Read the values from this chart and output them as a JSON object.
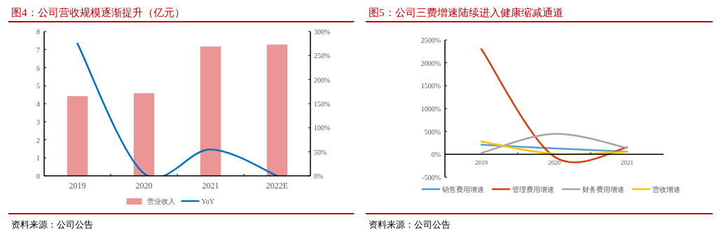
{
  "chart_data": [
    {
      "type": "bar",
      "title": "图4：公司营收规模逐渐提升（亿元）",
      "categories": [
        "2019",
        "2020",
        "2021",
        "2022E"
      ],
      "series": [
        {
          "name": "营业收入",
          "color": "#eb9595",
          "values": [
            4.42,
            4.58,
            7.17,
            7.28
          ]
        },
        {
          "name": "YoY",
          "type": "line",
          "color": "#0070c0",
          "axis": "y2",
          "values": [
            275,
            5,
            55,
            0
          ]
        }
      ],
      "ylim": [
        0,
        8
      ],
      "yticks": [
        0,
        1,
        2,
        3,
        4,
        5,
        6,
        7,
        8
      ],
      "y2lim": [
        0,
        300
      ],
      "y2ticks": [
        {
          "value": 0,
          "label": "0%"
        },
        {
          "value": 50,
          "label": "50%"
        },
        {
          "value": 100,
          "label": "100%"
        },
        {
          "value": 150,
          "label": "150%"
        },
        {
          "value": 200,
          "label": "200%"
        },
        {
          "value": 250,
          "label": "250%"
        },
        {
          "value": 300,
          "label": "300%"
        }
      ],
      "legend": "bottom",
      "annotations": [
        "资料来源：公司公告"
      ]
    },
    {
      "type": "line",
      "title": "图5：公司三费增速陆续进入健康缩减通道",
      "categories": [
        "2019",
        "2020",
        "2021"
      ],
      "series": [
        {
          "name": "销售费用增速",
          "color": "#5b9bd5",
          "values": [
            210,
            130,
            60
          ]
        },
        {
          "name": "管理费用增速",
          "color": "#d9400f",
          "values": [
            2300,
            -50,
            150
          ]
        },
        {
          "name": "财务费用增速",
          "color": "#a5a5a5",
          "values": [
            30,
            450,
            140
          ]
        },
        {
          "name": "营收增速",
          "color": "#ffc000",
          "values": [
            280,
            10,
            60
          ]
        }
      ],
      "ylim": [
        -500,
        2500
      ],
      "yticks": [
        {
          "value": -500,
          "label": "-500%"
        },
        {
          "value": 0,
          "label": "0%"
        },
        {
          "value": 500,
          "label": "500%"
        },
        {
          "value": 1000,
          "label": "1000%"
        },
        {
          "value": 1500,
          "label": "1500%"
        },
        {
          "value": 2000,
          "label": "2000%"
        },
        {
          "value": 2500,
          "label": "2500%"
        }
      ],
      "legend": "bottom",
      "annotations": [
        "资料来源：公司公告"
      ]
    }
  ]
}
